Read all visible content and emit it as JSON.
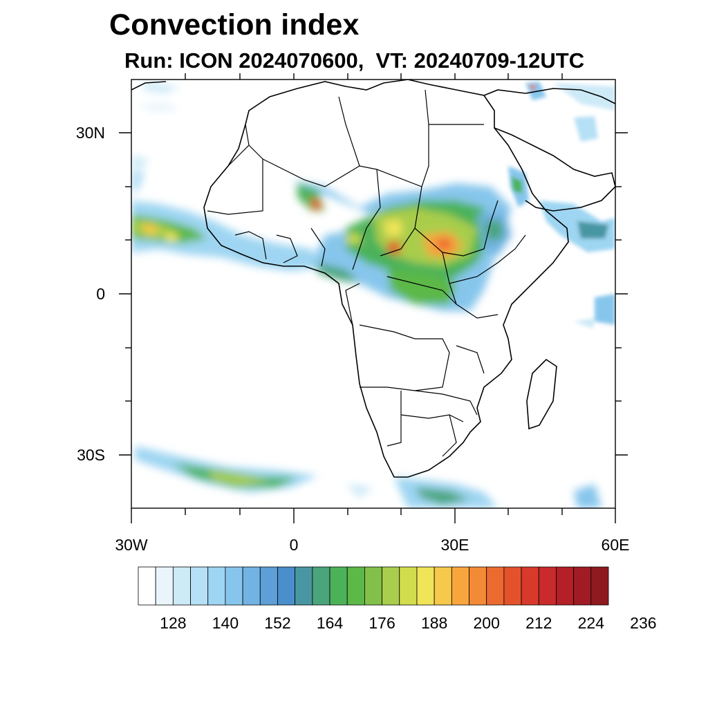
{
  "title": "Convection index",
  "subtitle": "Run: ICON 2024070600,  VT: 20240709-12UTC",
  "axes": {
    "lat_labels": [
      "30N",
      "0",
      "30S"
    ],
    "lon_labels": [
      "30W",
      "0",
      "30E",
      "60E"
    ]
  },
  "colorbar": {
    "colors": [
      "#ffffff",
      "#e9f5fb",
      "#cdeaf7",
      "#b6e0f5",
      "#9ed5f2",
      "#87c6ec",
      "#72b3e3",
      "#5d9fd6",
      "#4a8fcb",
      "#4996a3",
      "#4aa47c",
      "#4cb25a",
      "#5cb847",
      "#82c04a",
      "#a9cd4c",
      "#d2dd4e",
      "#f0e459",
      "#f7c94b",
      "#f7a63d",
      "#f38a36",
      "#ec6a30",
      "#e4522b",
      "#d8392a",
      "#c92a2b",
      "#b41f28",
      "#a01b24",
      "#8e1a1f"
    ],
    "labels": [
      "128",
      "140",
      "152",
      "164",
      "176",
      "188",
      "200",
      "212",
      "224",
      "236"
    ]
  }
}
